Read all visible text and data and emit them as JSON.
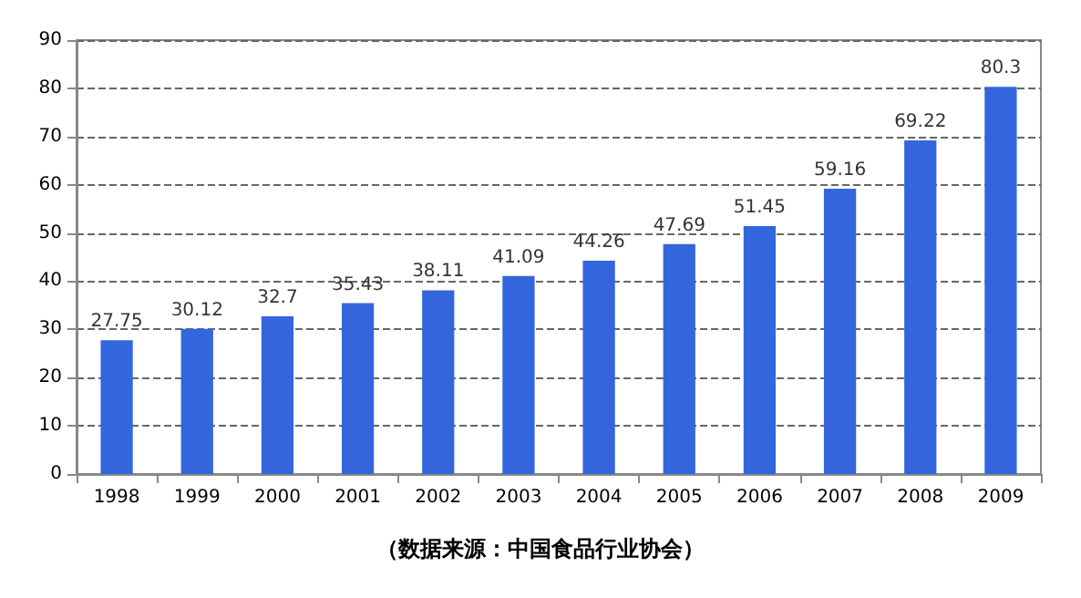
{
  "chart_data": {
    "type": "bar",
    "categories": [
      "1998",
      "1999",
      "2000",
      "2001",
      "2002",
      "2003",
      "2004",
      "2005",
      "2006",
      "2007",
      "2008",
      "2009"
    ],
    "values": [
      27.75,
      30.12,
      32.7,
      35.43,
      38.11,
      41.09,
      44.26,
      47.69,
      51.45,
      59.16,
      69.22,
      80.3
    ],
    "value_labels": [
      "27.75",
      "30.12",
      "32.7",
      "35.43",
      "38.11",
      "41.09",
      "44.26",
      "47.69",
      "51.45",
      "59.16",
      "69.22",
      "80.3"
    ],
    "color": "#3366dd",
    "ylim": [
      0,
      90
    ],
    "yticks": [
      0,
      10,
      20,
      30,
      40,
      50,
      60,
      70,
      80,
      90
    ],
    "grid": "y",
    "line_style": "dashed",
    "annotations": [
      "（数据来源：中国食品行业协会）"
    ]
  }
}
